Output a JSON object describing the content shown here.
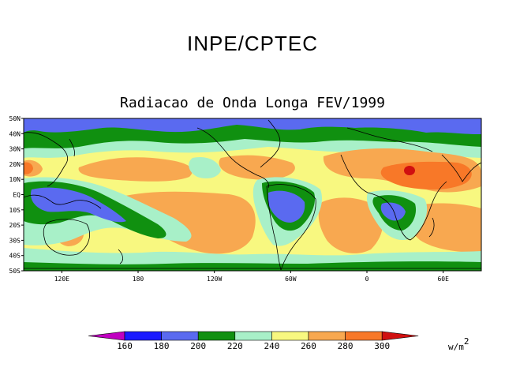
{
  "header": {
    "title": "INPE/CPTEC",
    "subtitle": "Radiacao de Onda Longa FEV/1999"
  },
  "map": {
    "lat_labels": [
      "50N",
      "40N",
      "30N",
      "20N",
      "10N",
      "EQ",
      "10S",
      "20S",
      "30S",
      "40S",
      "50S"
    ],
    "lon_labels": [
      "120E",
      "180",
      "120W",
      "60W",
      "0",
      "60E"
    ],
    "lon_values": [
      120,
      180,
      240,
      300,
      360,
      420
    ],
    "lat_values": [
      50,
      40,
      30,
      20,
      10,
      0,
      -10,
      -20,
      -30,
      -40,
      -50
    ],
    "lon_range": [
      90,
      450
    ],
    "lat_range": [
      -50,
      50
    ]
  },
  "legend": {
    "levels": [
      "160",
      "180",
      "200",
      "220",
      "240",
      "260",
      "280",
      "300"
    ],
    "colors": [
      "#c000c0",
      "#1a1aff",
      "#5a6af0",
      "#109010",
      "#a8f0c8",
      "#f8f880",
      "#f8a850",
      "#f87828",
      "#d01010"
    ],
    "unit": "w/m",
    "unit_exp": "2"
  }
}
